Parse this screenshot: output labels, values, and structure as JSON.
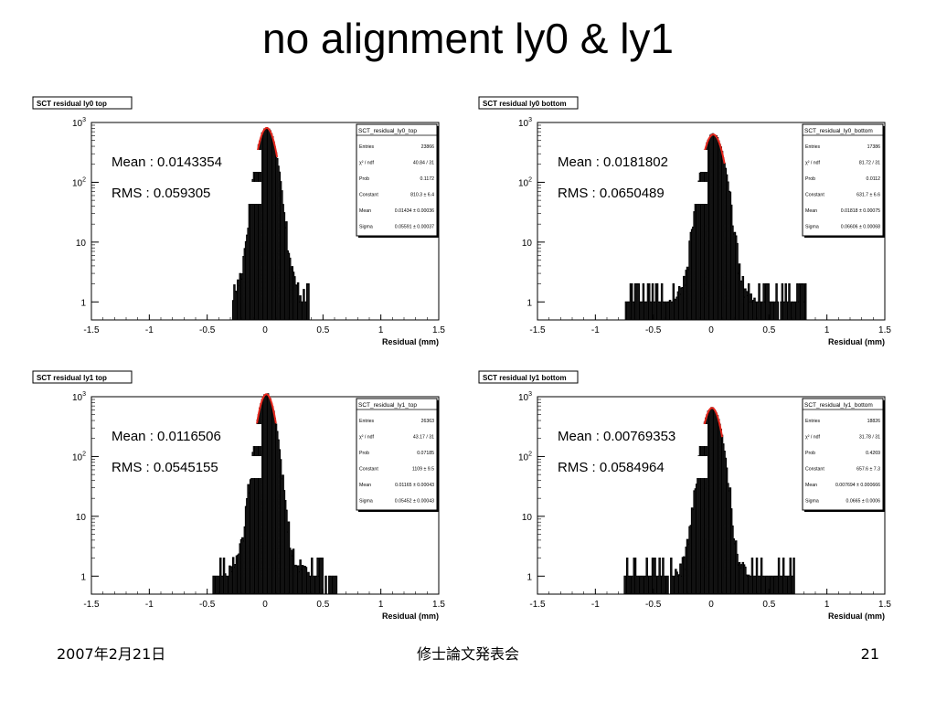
{
  "slide": {
    "title": "no alignment ly0 & ly1",
    "footer_date": "2007年2月21日",
    "footer_center": "修士論文発表会",
    "page_number": "21"
  },
  "colors": {
    "histogram": "#000000",
    "fit": "#e8281e",
    "background": "#ffffff"
  },
  "chart_data": [
    {
      "type": "histogram",
      "title": "SCT residual ly0 top",
      "stats_box_title": "SCT_residual_ly0_top",
      "stats": [
        {
          "label": "Entries",
          "value": "23866"
        },
        {
          "label": "χ² / ndf",
          "value": "40.84 / 31"
        },
        {
          "label": "Prob",
          "value": "0.1172"
        },
        {
          "label": "Constant",
          "value": "810.3 ± 6.4"
        },
        {
          "label": "Mean",
          "value": "0.01434 ± 0.00036"
        },
        {
          "label": "Sigma",
          "value": "0.05591 ± 0.00037"
        }
      ],
      "mean_text": "Mean : 0.0143354",
      "rms_text": "RMS : 0.059305",
      "mean": 0.0143354,
      "rms": 0.059305,
      "peak": 810,
      "range": [
        -0.28,
        0.38
      ],
      "xlabel": "Residual (mm)",
      "ylog": true,
      "xlim": [
        -1.5,
        1.5
      ],
      "ylim": [
        0.5,
        1000
      ],
      "xticks": [
        "-1.5",
        "-1",
        "-0.5",
        "0",
        "0.5",
        "1",
        "1.5"
      ],
      "yticks": [
        {
          "v": 1,
          "label": "1"
        },
        {
          "v": 10,
          "label": "10"
        },
        {
          "v": 100,
          "label": "10",
          "sup": "2"
        },
        {
          "v": 1000,
          "label": "10",
          "sup": "3"
        }
      ]
    },
    {
      "type": "histogram",
      "title": "SCT residual ly0 bottom",
      "stats_box_title": "SCT_residual_ly0_bottom",
      "stats": [
        {
          "label": "Entries",
          "value": "17386"
        },
        {
          "label": "χ² / ndf",
          "value": "81.72 / 31"
        },
        {
          "label": "Prob",
          "value": "0.0112"
        },
        {
          "label": "Constant",
          "value": "631.7 ± 6.6"
        },
        {
          "label": "Mean",
          "value": "0.01818 ± 0.00075"
        },
        {
          "label": "Sigma",
          "value": "0.06606 ± 0.00068"
        }
      ],
      "mean_text": "Mean : 0.0181802",
      "rms_text": "RMS : 0.0650489",
      "mean": 0.0181802,
      "rms": 0.0650489,
      "peak": 630,
      "range": [
        -0.75,
        0.82
      ],
      "xlabel": "Residual (mm)",
      "ylog": true,
      "xlim": [
        -1.5,
        1.5
      ],
      "ylim": [
        0.5,
        1000
      ],
      "xticks": [
        "-1.5",
        "-1",
        "-0.5",
        "0",
        "0.5",
        "1",
        "1.5"
      ],
      "yticks": [
        {
          "v": 1,
          "label": "1"
        },
        {
          "v": 10,
          "label": "10"
        },
        {
          "v": 100,
          "label": "10",
          "sup": "2"
        },
        {
          "v": 1000,
          "label": "10",
          "sup": "3"
        }
      ]
    },
    {
      "type": "histogram",
      "title": "SCT residual ly1 top",
      "stats_box_title": "SCT_residual_ly1_top",
      "stats": [
        {
          "label": "Entries",
          "value": "26363"
        },
        {
          "label": "χ² / ndf",
          "value": "43.17 / 31"
        },
        {
          "label": "Prob",
          "value": "0.07185"
        },
        {
          "label": "Constant",
          "value": "1109 ± 9.5"
        },
        {
          "label": "Mean",
          "value": "0.01165 ± 0.00043"
        },
        {
          "label": "Sigma",
          "value": "0.05452 ± 0.00043"
        }
      ],
      "mean_text": "Mean : 0.0116506",
      "rms_text": "RMS : 0.0545155",
      "mean": 0.0116506,
      "rms": 0.0545155,
      "peak": 1100,
      "range": [
        -0.45,
        0.62
      ],
      "xlabel": "Residual (mm)",
      "ylog": true,
      "xlim": [
        -1.5,
        1.5
      ],
      "ylim": [
        0.5,
        1000
      ],
      "xticks": [
        "-1.5",
        "-1",
        "-0.5",
        "0",
        "0.5",
        "1",
        "1.5"
      ],
      "yticks": [
        {
          "v": 1,
          "label": "1"
        },
        {
          "v": 10,
          "label": "10"
        },
        {
          "v": 100,
          "label": "10",
          "sup": "2"
        },
        {
          "v": 1000,
          "label": "10",
          "sup": "3"
        }
      ]
    },
    {
      "type": "histogram",
      "title": "SCT residual ly1 bottom",
      "stats_box_title": "SCT_residual_ly1_bottom",
      "stats": [
        {
          "label": "Entries",
          "value": "18826"
        },
        {
          "label": "χ² / ndf",
          "value": "31.78 / 31"
        },
        {
          "label": "Prob",
          "value": "0.4269"
        },
        {
          "label": "Constant",
          "value": "657.6 ± 7.3"
        },
        {
          "label": "Mean",
          "value": "0.007694 ± 0.000666"
        },
        {
          "label": "Sigma",
          "value": "0.0665 ± 0.0006"
        }
      ],
      "mean_text": "Mean : 0.00769353",
      "rms_text": "RMS : 0.0584964",
      "mean": 0.00769353,
      "rms": 0.0584964,
      "peak": 650,
      "range": [
        -0.75,
        0.72
      ],
      "xlabel": "Residual (mm)",
      "ylog": true,
      "xlim": [
        -1.5,
        1.5
      ],
      "ylim": [
        0.5,
        1000
      ],
      "xticks": [
        "-1.5",
        "-1",
        "-0.5",
        "0",
        "0.5",
        "1",
        "1.5"
      ],
      "yticks": [
        {
          "v": 1,
          "label": "1"
        },
        {
          "v": 10,
          "label": "10"
        },
        {
          "v": 100,
          "label": "10",
          "sup": "2"
        },
        {
          "v": 1000,
          "label": "10",
          "sup": "3"
        }
      ]
    }
  ]
}
